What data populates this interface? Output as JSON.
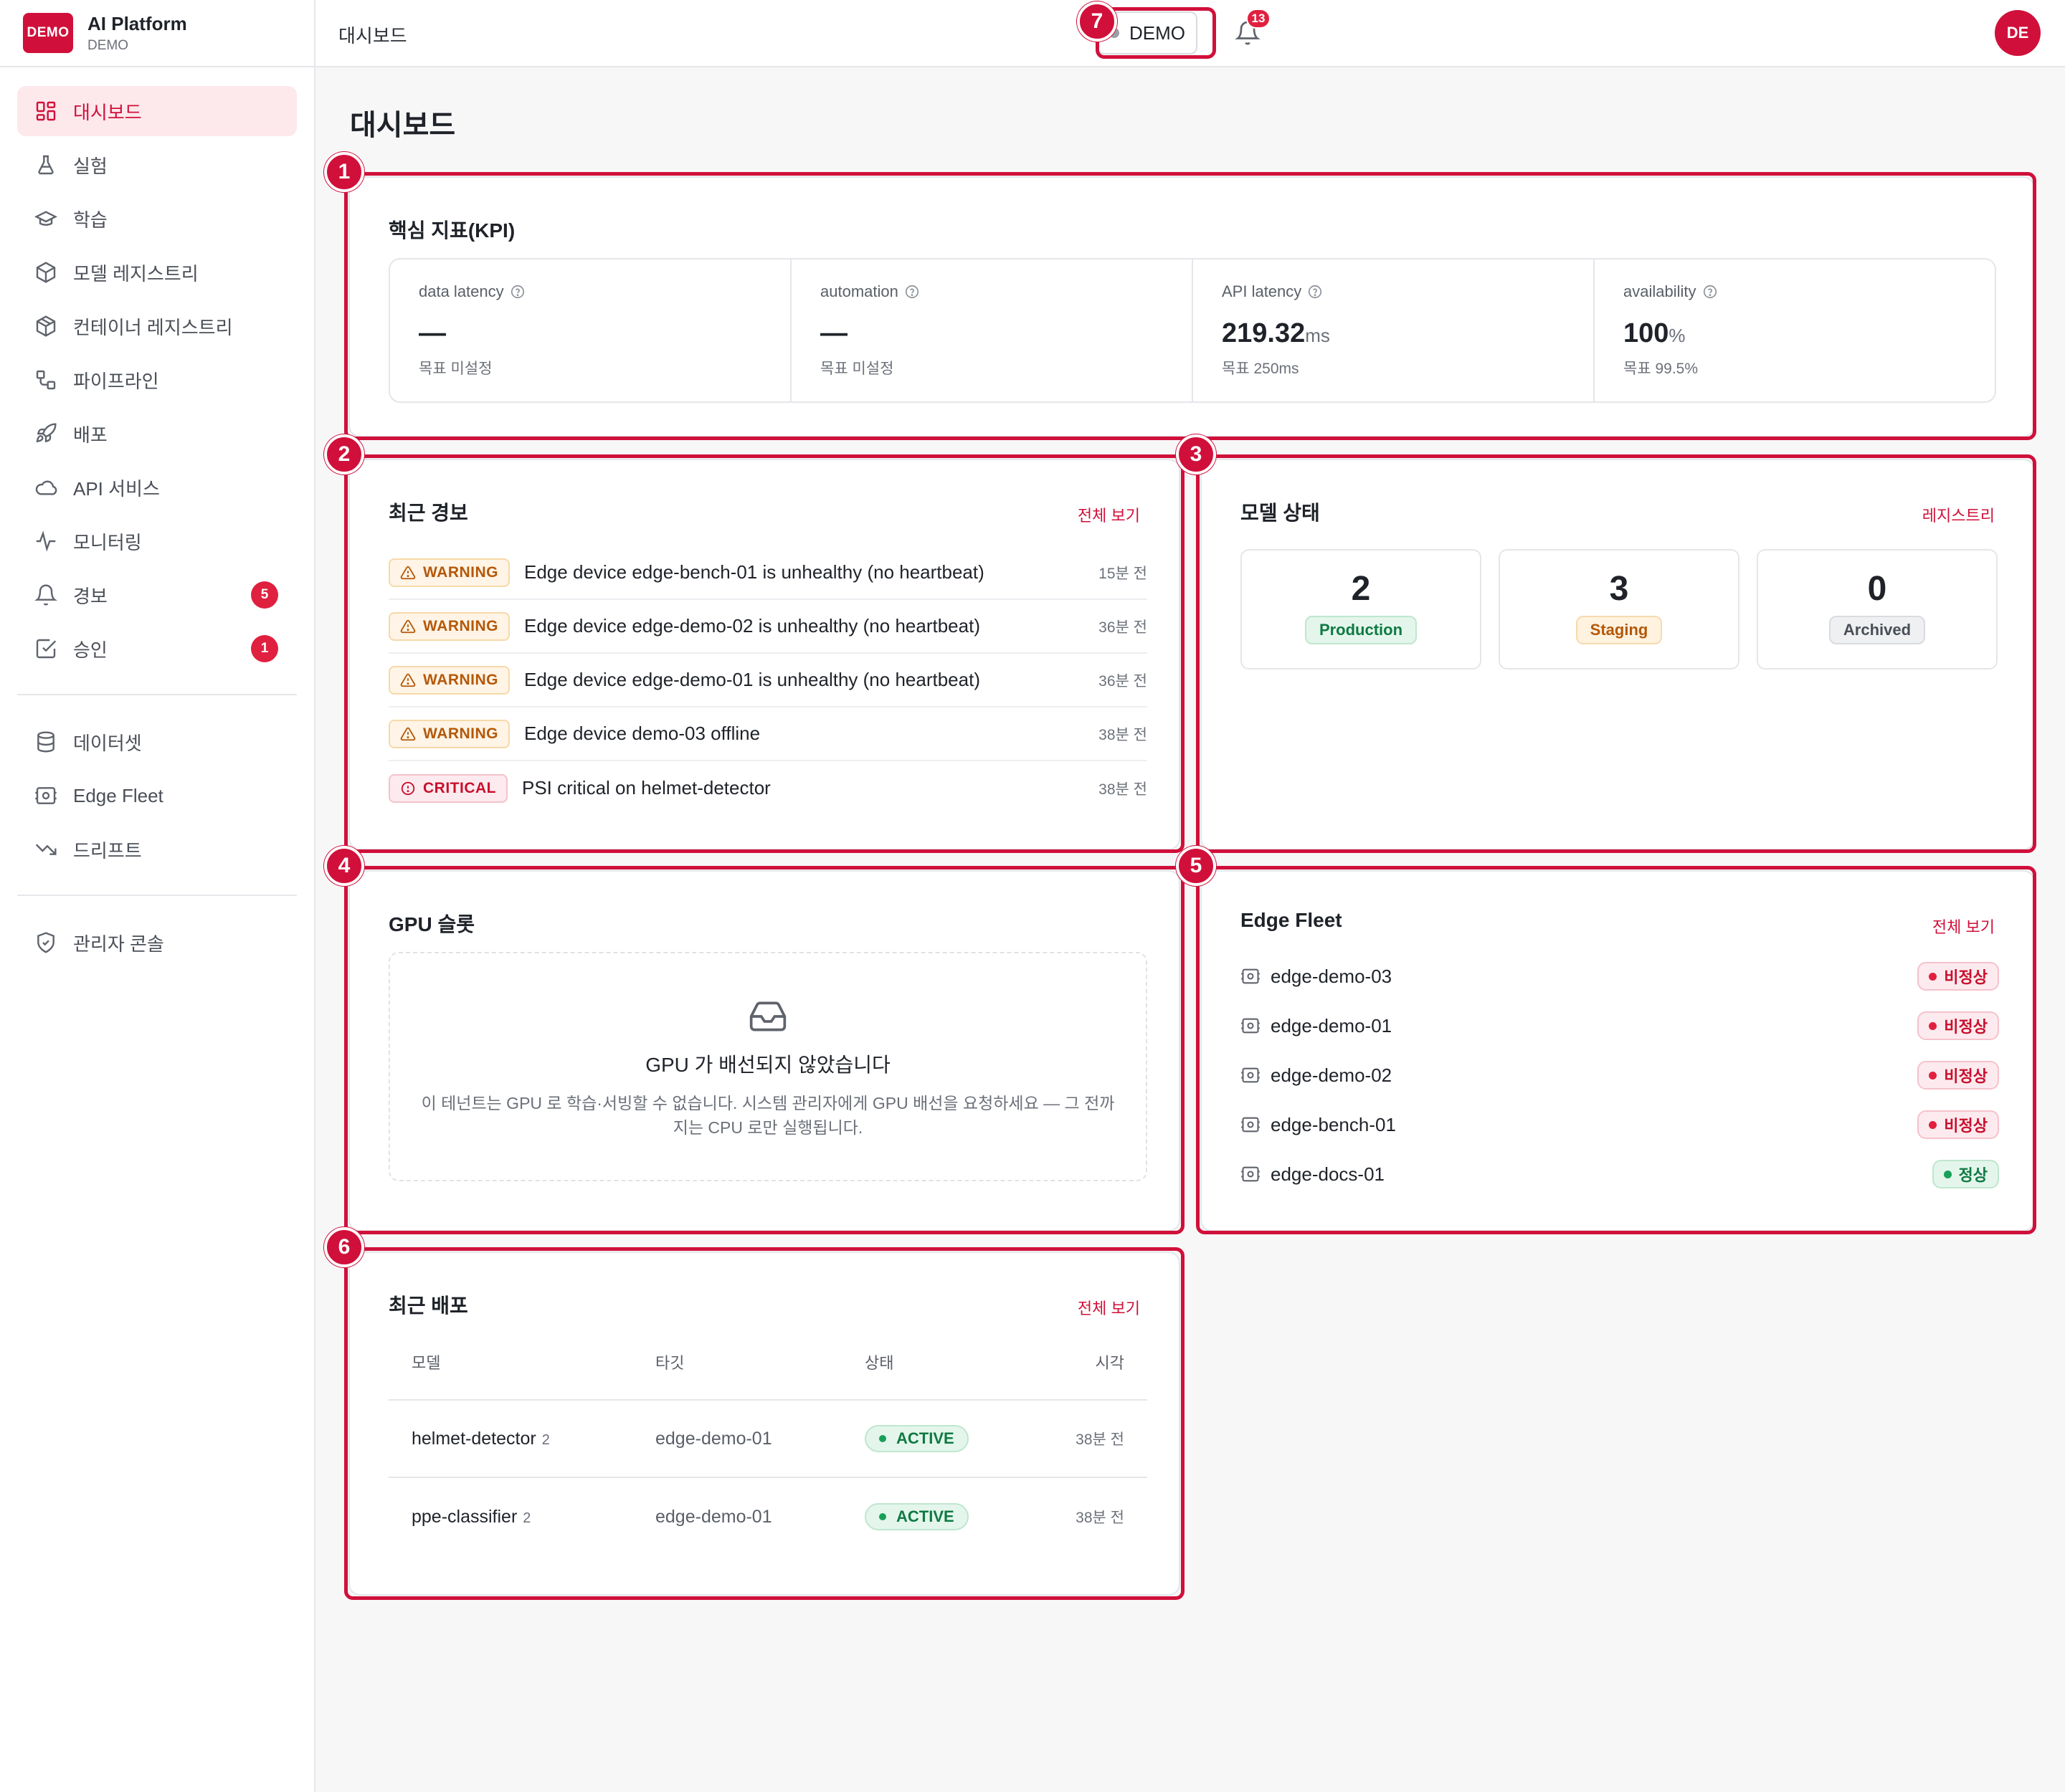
{
  "brand": {
    "logo": "DEMO",
    "name": "AI Platform",
    "sub": "DEMO"
  },
  "sidebar": {
    "items": [
      {
        "label": "대시보드",
        "icon": "dashboard-icon"
      },
      {
        "label": "실험",
        "icon": "flask-icon"
      },
      {
        "label": "학습",
        "icon": "graduation-cap-icon"
      },
      {
        "label": "모델 레지스트리",
        "icon": "cube-icon"
      },
      {
        "label": "컨테이너 레지스트리",
        "icon": "container-icon"
      },
      {
        "label": "파이프라인",
        "icon": "pipeline-icon"
      },
      {
        "label": "배포",
        "icon": "rocket-icon"
      },
      {
        "label": "API 서비스",
        "icon": "cloud-icon"
      },
      {
        "label": "모니터링",
        "icon": "pulse-icon"
      },
      {
        "label": "경보",
        "icon": "bell-icon",
        "badge": "5"
      },
      {
        "label": "승인",
        "icon": "check-square-icon",
        "badge": "1"
      },
      {
        "label": "데이터셋",
        "icon": "database-icon"
      },
      {
        "label": "Edge Fleet",
        "icon": "device-icon"
      },
      {
        "label": "드리프트",
        "icon": "trend-down-icon"
      },
      {
        "label": "관리자 콘솔",
        "icon": "shield-icon"
      }
    ]
  },
  "topbar": {
    "breadcrumb": "대시보드",
    "env": "DEMO",
    "notifications": "13",
    "avatar": "DE"
  },
  "page": {
    "title": "대시보드"
  },
  "markers": [
    "1",
    "2",
    "3",
    "4",
    "5",
    "6",
    "7"
  ],
  "kpi": {
    "title": "핵심 지표(KPI)",
    "cells": [
      {
        "label": "data latency",
        "value": "—",
        "unit": "",
        "target": "목표 미설정"
      },
      {
        "label": "automation",
        "value": "—",
        "unit": "",
        "target": "목표 미설정"
      },
      {
        "label": "API latency",
        "value": "219.32",
        "unit": "ms",
        "target": "목표 250ms"
      },
      {
        "label": "availability",
        "value": "100",
        "unit": "%",
        "target": "목표 99.5%"
      }
    ]
  },
  "alerts": {
    "title": "최근 경보",
    "link": "전체 보기",
    "rows": [
      {
        "severity": "WARNING",
        "message": "Edge device edge-bench-01 is unhealthy (no heartbeat)",
        "time": "15분 전"
      },
      {
        "severity": "WARNING",
        "message": "Edge device edge-demo-02 is unhealthy (no heartbeat)",
        "time": "36분 전"
      },
      {
        "severity": "WARNING",
        "message": "Edge device edge-demo-01 is unhealthy (no heartbeat)",
        "time": "36분 전"
      },
      {
        "severity": "WARNING",
        "message": "Edge device demo-03 offline",
        "time": "38분 전"
      },
      {
        "severity": "CRITICAL",
        "message": "PSI critical on helmet-detector",
        "time": "38분 전"
      }
    ]
  },
  "model_status": {
    "title": "모델 상태",
    "link": "레지스트리",
    "boxes": [
      {
        "count": "2",
        "label": "Production"
      },
      {
        "count": "3",
        "label": "Staging"
      },
      {
        "count": "0",
        "label": "Archived"
      }
    ]
  },
  "gpu": {
    "title": "GPU 슬롯",
    "empty_title": "GPU 가 배선되지 않았습니다",
    "empty_desc": "이 테넌트는 GPU 로 학습·서빙할 수 없습니다. 시스템 관리자에게 GPU 배선을 요청하세요 — 그 전까지는 CPU 로만 실행됩니다."
  },
  "fleet": {
    "title": "Edge Fleet",
    "link": "전체 보기",
    "rows": [
      {
        "name": "edge-demo-03",
        "status": "비정상",
        "ok": false
      },
      {
        "name": "edge-demo-01",
        "status": "비정상",
        "ok": false
      },
      {
        "name": "edge-demo-02",
        "status": "비정상",
        "ok": false
      },
      {
        "name": "edge-bench-01",
        "status": "비정상",
        "ok": false
      },
      {
        "name": "edge-docs-01",
        "status": "정상",
        "ok": true
      }
    ]
  },
  "deploys": {
    "title": "최근 배포",
    "link": "전체 보기",
    "columns": [
      "모델",
      "타깃",
      "상태",
      "시각"
    ],
    "rows": [
      {
        "model": "helmet-detector",
        "version": "2",
        "target": "edge-demo-01",
        "status": "ACTIVE",
        "time": "38분 전"
      },
      {
        "model": "ppe-classifier",
        "version": "2",
        "target": "edge-demo-01",
        "status": "ACTIVE",
        "time": "38분 전"
      }
    ]
  },
  "colors": {
    "accent": "#d0103a",
    "success": "#18a058",
    "warning": "#b4580a"
  }
}
